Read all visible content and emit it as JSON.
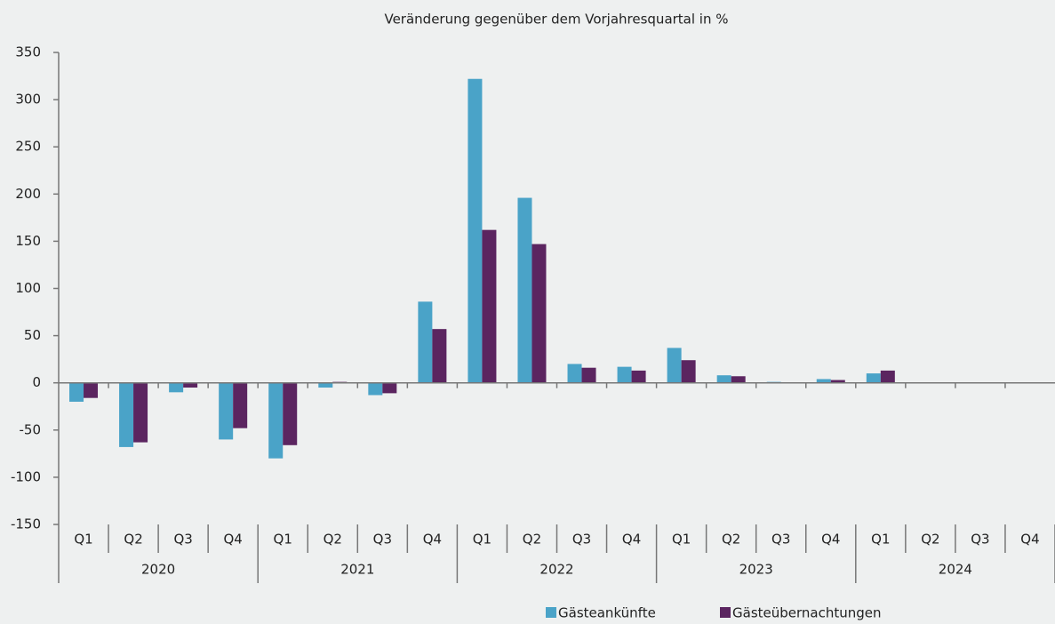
{
  "chart_data": {
    "type": "bar",
    "title": "Veränderung gegenüber dem Vorjahresquartal in %",
    "categories": [
      "Q1",
      "Q2",
      "Q3",
      "Q4",
      "Q1",
      "Q2",
      "Q3",
      "Q4",
      "Q1",
      "Q2",
      "Q3",
      "Q4",
      "Q1",
      "Q2",
      "Q3",
      "Q4",
      "Q1",
      "Q2",
      "Q3",
      "Q4"
    ],
    "x_groups": [
      "2020",
      "2021",
      "2022",
      "2023",
      "2024"
    ],
    "series": [
      {
        "name": "Gästeankünfte",
        "color": "#4aa3c8",
        "values": [
          -20,
          -68,
          -10,
          -60,
          -80,
          -5,
          -13,
          86,
          322,
          196,
          20,
          17,
          37,
          8,
          1,
          4,
          10,
          null,
          null,
          null
        ]
      },
      {
        "name": "Gästeübernachtungen",
        "color": "#5b2560",
        "values": [
          -16,
          -63,
          -5,
          -48,
          -66,
          1,
          -11,
          57,
          162,
          147,
          16,
          13,
          24,
          7,
          0,
          3,
          13,
          null,
          null,
          null
        ]
      }
    ],
    "ylim": [
      -150,
      350
    ],
    "yticks": [
      -150,
      -100,
      -50,
      0,
      50,
      100,
      150,
      200,
      250,
      300,
      350
    ],
    "grid": false,
    "legend": "bottom"
  }
}
